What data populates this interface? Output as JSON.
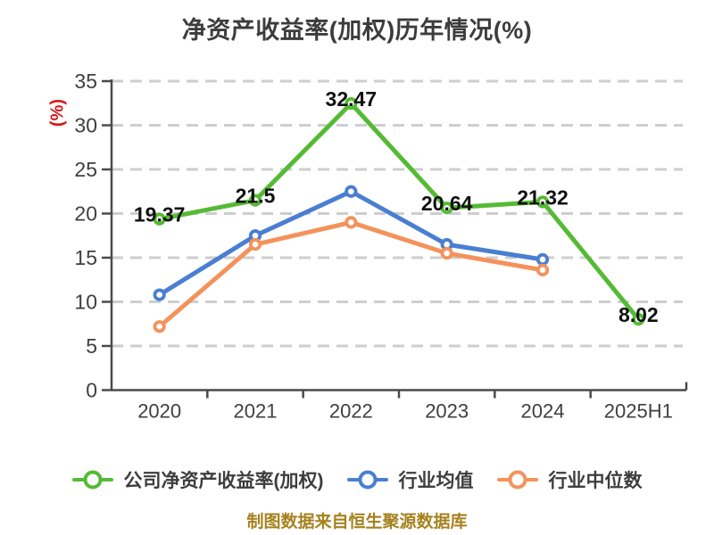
{
  "footer": {
    "text": "制图数据来自恒生聚源数据库"
  },
  "chart_data": {
    "type": "line",
    "title": "净资产收益率(加权)历年情况(%)",
    "ylabel": "(%)",
    "categories": [
      "2020",
      "2021",
      "2022",
      "2023",
      "2024",
      "2025H1"
    ],
    "series": [
      {
        "name": "公司净资产收益率(加权)",
        "color": "#55ba34",
        "values": [
          19.37,
          21.5,
          32.47,
          20.64,
          21.32,
          8.02
        ],
        "labels": [
          "19.37",
          "21.5",
          "32.47",
          "20.64",
          "21.32",
          "8.02"
        ]
      },
      {
        "name": "行业均值",
        "color": "#4a7ed2",
        "values": [
          10.8,
          17.5,
          22.5,
          16.5,
          14.8,
          null
        ]
      },
      {
        "name": "行业中位数",
        "color": "#f4925c",
        "values": [
          7.2,
          16.5,
          19.0,
          15.5,
          13.6,
          null
        ]
      }
    ],
    "ylim": [
      0,
      35
    ],
    "yticks": [
      0,
      5,
      10,
      15,
      20,
      25,
      30,
      35
    ],
    "grid": "horizontal-dashed",
    "gridline_color": "#cecece",
    "axis_color": "#4a4a4a",
    "tick_label_color": "#3f3f3f",
    "data_label_color": "#111111",
    "legend_position": "bottom"
  }
}
